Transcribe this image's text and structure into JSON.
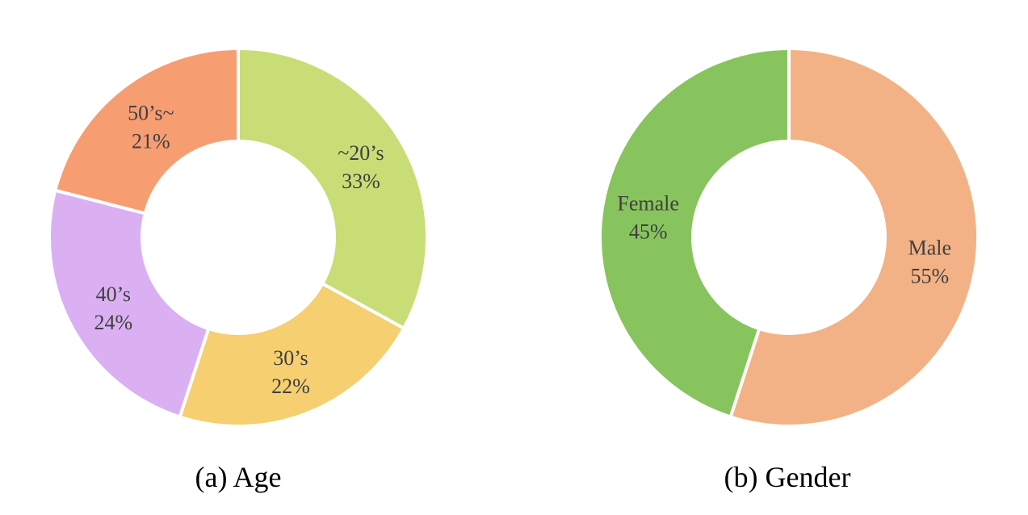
{
  "chart_data": [
    {
      "type": "pie",
      "caption": "(a) Age",
      "slices": [
        {
          "name": "~20’s",
          "value": 33,
          "label": "33%",
          "color": "#C9DD76"
        },
        {
          "name": "30’s",
          "value": 22,
          "label": "22%",
          "color": "#F5CF70"
        },
        {
          "name": "40’s",
          "value": 24,
          "label": "24%",
          "color": "#DAB0F3"
        },
        {
          "name": "50’s~",
          "value": 21,
          "label": "21%",
          "color": "#F79D72"
        }
      ]
    },
    {
      "type": "pie",
      "caption": "(b) Gender",
      "slices": [
        {
          "name": "Male",
          "value": 55,
          "label": "55%",
          "color": "#F3B285"
        },
        {
          "name": "Female",
          "value": 45,
          "label": "45%",
          "color": "#88C45E"
        }
      ]
    }
  ]
}
